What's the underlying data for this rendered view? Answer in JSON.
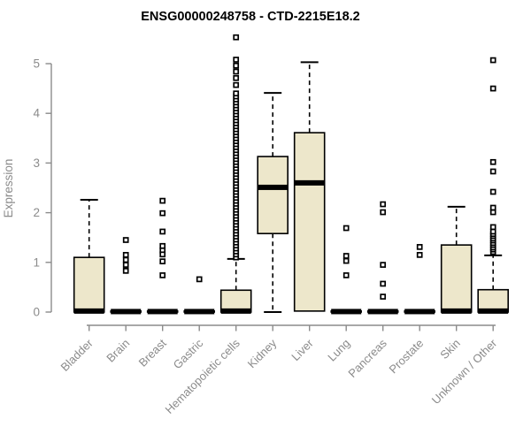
{
  "chart_data": {
    "type": "boxplot",
    "title": "ENSG00000248758 - CTD-2215E18.2",
    "ylabel": "Expression",
    "xlabel": "",
    "ylim": [
      0,
      5
    ],
    "yticks": [
      0,
      1,
      2,
      3,
      4,
      5
    ],
    "grid": false,
    "legend": "none",
    "categories": [
      "Bladder",
      "Brain",
      "Breast",
      "Gastric",
      "Hematopoietic cells",
      "Kidney",
      "Liver",
      "Lung",
      "Pancreas",
      "Prostate",
      "Skin",
      "Unknown / Other"
    ],
    "boxes": [
      {
        "category": "Bladder",
        "q1": 0,
        "median": 0.02,
        "q3": 1.1,
        "whisker_low": 0,
        "whisker_high": 2.26,
        "outliers": []
      },
      {
        "category": "Brain",
        "q1": 0,
        "median": 0.01,
        "q3": 0.02,
        "whisker_low": 0,
        "whisker_high": 0.02,
        "outliers": [
          1.45,
          1.15,
          1.05,
          0.95,
          0.83
        ]
      },
      {
        "category": "Breast",
        "q1": 0,
        "median": 0.01,
        "q3": 0.02,
        "whisker_low": 0,
        "whisker_high": 0.02,
        "outliers": [
          2.24,
          1.99,
          1.62,
          1.33,
          1.24,
          1.16,
          1.02,
          0.74
        ]
      },
      {
        "category": "Gastric",
        "q1": 0,
        "median": 0.01,
        "q3": 0.02,
        "whisker_low": 0,
        "whisker_high": 0.02,
        "outliers": [
          0.66
        ]
      },
      {
        "category": "Hematopoietic cells",
        "q1": 0,
        "median": 0.02,
        "q3": 0.44,
        "whisker_low": 0,
        "whisker_high": 1.07,
        "outliers": [
          1.1,
          1.16,
          1.22,
          1.28,
          1.34,
          1.4,
          1.46,
          1.52,
          1.58,
          1.64,
          1.7,
          1.76,
          1.82,
          1.88,
          1.94,
          2.0,
          2.06,
          2.12,
          2.18,
          2.24,
          2.3,
          2.36,
          2.42,
          2.48,
          2.54,
          2.6,
          2.66,
          2.72,
          2.78,
          2.84,
          2.9,
          2.96,
          3.02,
          3.08,
          3.14,
          3.2,
          3.26,
          3.32,
          3.38,
          3.44,
          3.5,
          3.56,
          3.62,
          3.68,
          3.74,
          3.8,
          3.86,
          3.92,
          3.98,
          4.04,
          4.1,
          4.16,
          4.22,
          4.28,
          4.34,
          4.4,
          4.57,
          4.71,
          4.84,
          4.96,
          5.08,
          5.53
        ]
      },
      {
        "category": "Kidney",
        "q1": 1.58,
        "median": 2.51,
        "q3": 3.13,
        "whisker_low": 0,
        "whisker_high": 4.41,
        "outliers": []
      },
      {
        "category": "Liver",
        "q1": 0.02,
        "median": 2.6,
        "q3": 3.61,
        "whisker_low": 0.02,
        "whisker_high": 5.03,
        "outliers": []
      },
      {
        "category": "Lung",
        "q1": 0,
        "median": 0.01,
        "q3": 0.02,
        "whisker_low": 0,
        "whisker_high": 0.02,
        "outliers": [
          1.69,
          1.13,
          1.03,
          0.74
        ]
      },
      {
        "category": "Pancreas",
        "q1": 0,
        "median": 0.01,
        "q3": 0.02,
        "whisker_low": 0,
        "whisker_high": 0.02,
        "outliers": [
          2.17,
          2.01,
          0.95,
          0.57,
          0.31
        ]
      },
      {
        "category": "Prostate",
        "q1": 0,
        "median": 0.01,
        "q3": 0.02,
        "whisker_low": 0,
        "whisker_high": 0.02,
        "outliers": [
          1.31,
          1.15
        ]
      },
      {
        "category": "Skin",
        "q1": 0,
        "median": 0.02,
        "q3": 1.35,
        "whisker_low": 0,
        "whisker_high": 2.12,
        "outliers": []
      },
      {
        "category": "Unknown / Other",
        "q1": 0,
        "median": 0.02,
        "q3": 0.45,
        "whisker_low": 0,
        "whisker_high": 1.14,
        "outliers": [
          1.21,
          1.26,
          1.3,
          1.35,
          1.39,
          1.44,
          1.48,
          1.53,
          1.57,
          1.62,
          1.71,
          2.01,
          2.1,
          2.42,
          2.83,
          3.02,
          4.5,
          5.07
        ]
      }
    ],
    "colors": {
      "box_fill": "#EDE7CB",
      "box_stroke": "#000000",
      "median": "#000000",
      "whisker": "#000000",
      "outlier_stroke": "#000000",
      "outlier_fill": "#ffffff",
      "axis": "#8B8B8B",
      "tick_label": "#8B8B8B",
      "title_color": "#000000",
      "background": "#ffffff"
    }
  }
}
